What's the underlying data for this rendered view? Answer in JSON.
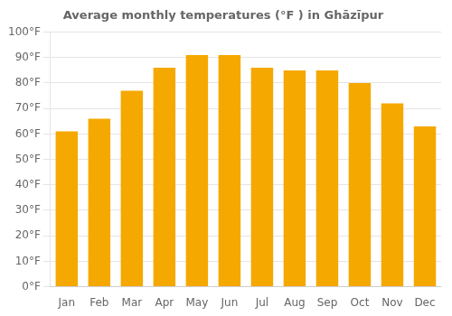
{
  "chart_data": {
    "type": "bar",
    "title": "Average monthly temperatures (°F ) in Ghāzīpur",
    "categories": [
      "Jan",
      "Feb",
      "Mar",
      "Apr",
      "May",
      "Jun",
      "Jul",
      "Aug",
      "Sep",
      "Oct",
      "Nov",
      "Dec"
    ],
    "values": [
      61,
      66,
      77,
      86,
      91,
      91,
      86,
      85,
      85,
      80,
      72,
      63
    ],
    "color": "#F5A800",
    "ylim": [
      0,
      100
    ],
    "yticks": [
      {
        "value": 0,
        "label": "0°F"
      },
      {
        "value": 10,
        "label": "10°F"
      },
      {
        "value": 20,
        "label": "20°F"
      },
      {
        "value": 30,
        "label": "30°F"
      },
      {
        "value": 40,
        "label": "40°F"
      },
      {
        "value": 50,
        "label": "50°F"
      },
      {
        "value": 60,
        "label": "60°F"
      },
      {
        "value": 70,
        "label": "70°F"
      },
      {
        "value": 80,
        "label": "80°F"
      },
      {
        "value": 90,
        "label": "90°F"
      },
      {
        "value": 100,
        "label": "100°F"
      }
    ],
    "grid": true
  }
}
